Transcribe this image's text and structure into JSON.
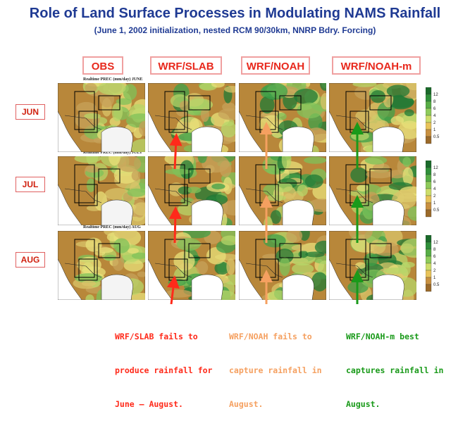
{
  "title": "Role of Land Surface Processes in Modulating NAMS Rainfall",
  "subtitle": "(June 1, 2002 initialization, nested RCM 90/30km, NNRP Bdry. Forcing)",
  "columns": [
    "OBS",
    "WRF/SLAB",
    "WRF/NOAH",
    "WRF/NOAH-m"
  ],
  "rows": [
    "JUN",
    "JUL",
    "AUG"
  ],
  "panel_captions": [
    "Realtime PREC (mm/day) JUNE",
    "Realtime PREC (mm/day) JULY",
    "Realtime PREC (mm/day) AUG"
  ],
  "colorbar_ticks": [
    "12",
    "8",
    "6",
    "4",
    "2",
    "1",
    "0.5"
  ],
  "notes": {
    "slab": [
      "WRF/SLAB fails to",
      "produce rainfall for",
      "June – August."
    ],
    "noah": [
      "WRF/NOAH fails to",
      "capture rainfall in",
      "August."
    ],
    "noahm": [
      "WRF/NOAH-m best",
      "captures rainfall in",
      "August."
    ]
  },
  "colors": {
    "title": "#1f3a93",
    "header_text": "#e8281c",
    "slab": "#ff2a1a",
    "noah": "#f5a060",
    "noahm": "#1a9a1a"
  }
}
